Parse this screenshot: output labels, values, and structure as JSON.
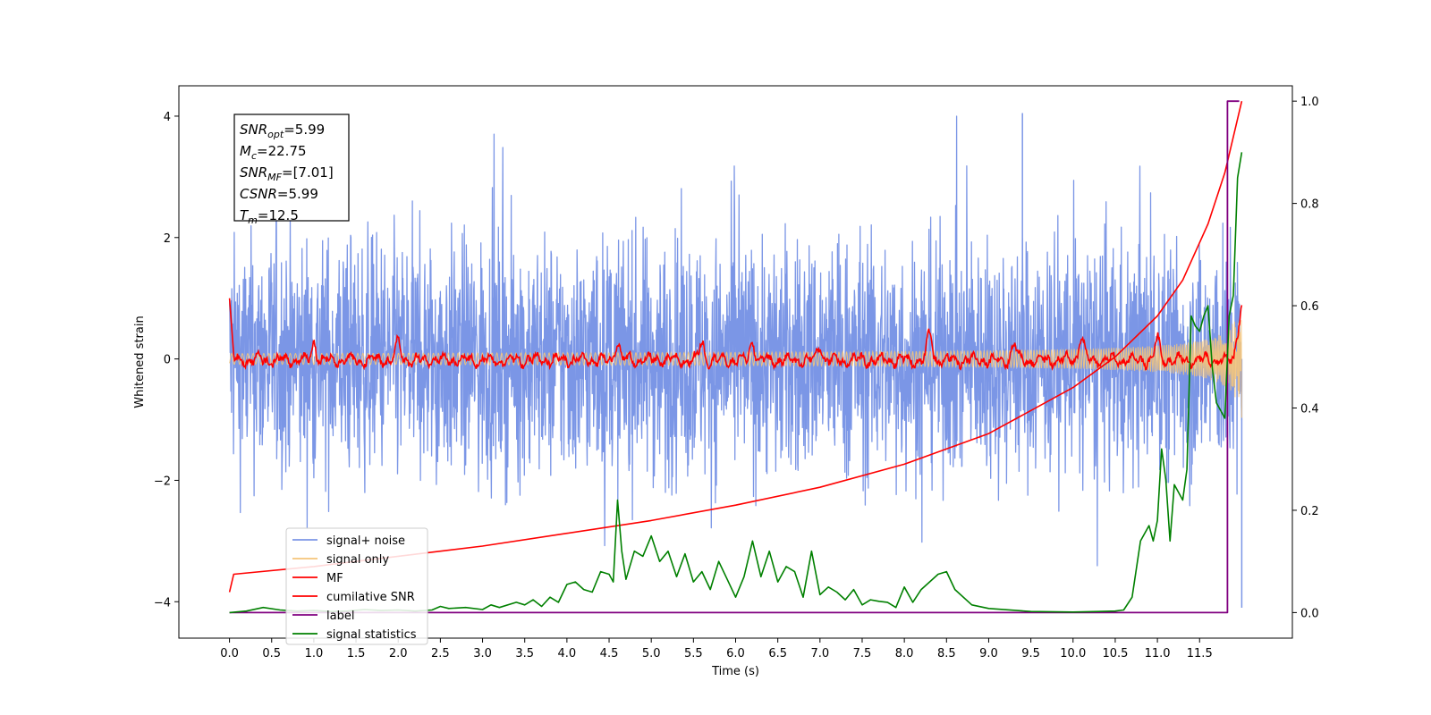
{
  "chart_data": {
    "type": "line",
    "xlabel": "Time (s)",
    "ylabel_left": "Whitened strain",
    "ylabel_right": "",
    "xlim": [
      -0.6,
      12.6
    ],
    "ylim_left": [
      -4.6,
      4.5
    ],
    "ylim_right": [
      -0.05,
      1.03
    ],
    "x_ticks": [
      0.0,
      0.5,
      1.0,
      1.5,
      2.0,
      2.5,
      3.0,
      3.5,
      4.0,
      4.5,
      5.0,
      5.5,
      6.0,
      6.5,
      7.0,
      7.5,
      8.0,
      8.5,
      9.0,
      9.5,
      10.0,
      10.5,
      11.0,
      11.5
    ],
    "x_tick_labels": [
      "0.0",
      "0.5",
      "1.0",
      "1.5",
      "2.0",
      "2.5",
      "3.0",
      "3.5",
      "4.0",
      "4.5",
      "5.0",
      "5.5",
      "6.0",
      "6.5",
      "7.0",
      "7.5",
      "8.0",
      "8.5",
      "9.0",
      "9.5",
      "10.0",
      "10.5",
      "11.0",
      "11.5"
    ],
    "y_ticks_left": [
      -4,
      -2,
      0,
      2,
      4
    ],
    "y_tick_labels_left": [
      "−4",
      "−2",
      "0",
      "2",
      "4"
    ],
    "y_ticks_right": [
      0.0,
      0.2,
      0.4,
      0.6,
      0.8,
      1.0
    ],
    "y_tick_labels_right": [
      "0.0",
      "0.2",
      "0.4",
      "0.6",
      "0.8",
      "1.0"
    ],
    "grid": false,
    "legend_position": "bottom-left",
    "annotation": {
      "lines": [
        {
          "sym": "SNR",
          "sub": "opt",
          "val": "=5.99"
        },
        {
          "sym": "M",
          "sub": "c",
          "val": "=22.75"
        },
        {
          "sym": "SNR",
          "sub": "MF",
          "val": "=[7.01]"
        },
        {
          "sym": "CSNR",
          "sub": "",
          "val": "=5.99"
        },
        {
          "sym": "T",
          "sub": "m",
          "val": "=12.5"
        }
      ]
    },
    "series": [
      {
        "name": "signal+ noise",
        "color": "#7b96e6",
        "axis": "left",
        "kind": "noise_band",
        "x_range": [
          0.0,
          12.0
        ],
        "amplitude_typical": 1.3,
        "peaks": [
          4.05,
          -4.1
        ],
        "note_x_of_peaks": [
          9.4,
          12.0
        ]
      },
      {
        "name": "signal only",
        "color": "#f5c57a",
        "axis": "left",
        "kind": "chirp",
        "x_range": [
          0.0,
          12.0
        ],
        "amplitude_start": 0.05,
        "amplitude_end": 1.0
      },
      {
        "name": "MF",
        "color": "#ff0000",
        "axis": "left",
        "kind": "matched_filter",
        "x_range": [
          0.0,
          12.0
        ],
        "start_value": 1.0,
        "end_value": 0.95,
        "bumps": [
          [
            1.0,
            0.3
          ],
          [
            2.0,
            0.3
          ],
          [
            4.6,
            0.3
          ],
          [
            5.6,
            0.3
          ],
          [
            6.2,
            0.3
          ],
          [
            7.0,
            0.25
          ],
          [
            8.3,
            0.45
          ],
          [
            9.3,
            0.28
          ],
          [
            10.1,
            0.42
          ],
          [
            11.0,
            0.35
          ]
        ]
      },
      {
        "name": "cumilative SNR",
        "color": "#ff0000",
        "axis": "right",
        "x": [
          0.0,
          0.05,
          1.0,
          2.0,
          3.0,
          4.0,
          5.0,
          6.0,
          7.0,
          8.0,
          9.0,
          10.0,
          10.5,
          11.0,
          11.3,
          11.6,
          11.8,
          12.0
        ],
        "values": [
          0.04,
          0.075,
          0.09,
          0.11,
          0.13,
          0.155,
          0.18,
          0.21,
          0.245,
          0.29,
          0.35,
          0.44,
          0.5,
          0.58,
          0.65,
          0.76,
          0.86,
          1.0
        ]
      },
      {
        "name": "label",
        "color": "#800080",
        "axis": "right",
        "x": [
          0.0,
          11.75,
          11.75,
          11.83,
          11.83,
          11.97
        ],
        "values": [
          0.0,
          0.0,
          0.0,
          0.0,
          1.0,
          1.0
        ]
      },
      {
        "name": "signal statistics",
        "color": "#008000",
        "axis": "right",
        "x": [
          0.0,
          0.2,
          0.4,
          0.6,
          0.8,
          1.0,
          1.2,
          1.4,
          1.6,
          1.8,
          2.0,
          2.2,
          2.4,
          2.5,
          2.6,
          2.8,
          3.0,
          3.1,
          3.2,
          3.4,
          3.5,
          3.6,
          3.7,
          3.8,
          3.9,
          4.0,
          4.1,
          4.2,
          4.3,
          4.4,
          4.5,
          4.55,
          4.6,
          4.65,
          4.7,
          4.8,
          4.9,
          5.0,
          5.1,
          5.2,
          5.3,
          5.4,
          5.5,
          5.6,
          5.7,
          5.8,
          5.9,
          6.0,
          6.1,
          6.2,
          6.3,
          6.4,
          6.5,
          6.6,
          6.7,
          6.8,
          6.9,
          7.0,
          7.1,
          7.2,
          7.3,
          7.4,
          7.5,
          7.6,
          7.7,
          7.8,
          7.9,
          8.0,
          8.1,
          8.2,
          8.3,
          8.4,
          8.5,
          8.6,
          8.8,
          9.0,
          9.5,
          10.0,
          10.3,
          10.5,
          10.6,
          10.7,
          10.8,
          10.9,
          10.95,
          11.0,
          11.05,
          11.1,
          11.15,
          11.2,
          11.3,
          11.35,
          11.4,
          11.45,
          11.5,
          11.55,
          11.6,
          11.65,
          11.7,
          11.8,
          11.85,
          11.9,
          11.95,
          12.0
        ],
        "values": [
          0.0,
          0.003,
          0.01,
          0.005,
          0.003,
          0.004,
          0.002,
          0.003,
          0.006,
          0.004,
          0.005,
          0.003,
          0.005,
          0.012,
          0.008,
          0.01,
          0.006,
          0.015,
          0.01,
          0.02,
          0.015,
          0.025,
          0.012,
          0.03,
          0.02,
          0.055,
          0.06,
          0.045,
          0.04,
          0.08,
          0.075,
          0.06,
          0.22,
          0.12,
          0.065,
          0.12,
          0.11,
          0.15,
          0.1,
          0.12,
          0.07,
          0.115,
          0.06,
          0.08,
          0.045,
          0.1,
          0.065,
          0.03,
          0.07,
          0.14,
          0.07,
          0.12,
          0.06,
          0.09,
          0.08,
          0.03,
          0.12,
          0.035,
          0.05,
          0.04,
          0.025,
          0.045,
          0.015,
          0.025,
          0.022,
          0.02,
          0.01,
          0.05,
          0.02,
          0.045,
          0.06,
          0.075,
          0.08,
          0.045,
          0.015,
          0.008,
          0.002,
          0.001,
          0.002,
          0.003,
          0.005,
          0.03,
          0.14,
          0.17,
          0.14,
          0.18,
          0.32,
          0.26,
          0.14,
          0.25,
          0.22,
          0.28,
          0.58,
          0.56,
          0.55,
          0.58,
          0.6,
          0.48,
          0.41,
          0.38,
          0.58,
          0.62,
          0.85,
          0.9
        ]
      }
    ]
  }
}
